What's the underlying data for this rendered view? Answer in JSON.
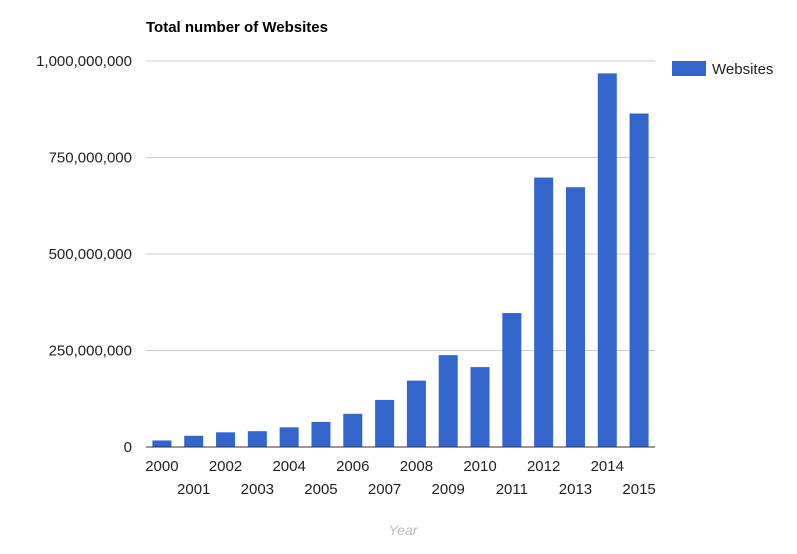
{
  "chart_data": {
    "type": "bar",
    "title": "Total number of Websites",
    "xlabel": "Year",
    "ylabel": "",
    "ylim": [
      0,
      1000000000
    ],
    "yticks": [
      0,
      250000000,
      500000000,
      750000000,
      1000000000
    ],
    "ytick_labels": [
      "0",
      "250,000,000",
      "500,000,000",
      "750,000,000",
      "1,000,000,000"
    ],
    "grid": true,
    "legend_position": "right",
    "categories": [
      "2000",
      "2001",
      "2002",
      "2003",
      "2004",
      "2005",
      "2006",
      "2007",
      "2008",
      "2009",
      "2010",
      "2011",
      "2012",
      "2013",
      "2014",
      "2015"
    ],
    "series": [
      {
        "name": "Websites",
        "color": "#3366cc",
        "values": [
          17000000,
          29000000,
          38000000,
          41000000,
          51000000,
          65000000,
          86000000,
          122000000,
          172000000,
          238000000,
          207000000,
          347000000,
          698000000,
          673000000,
          968000000,
          864000000
        ]
      }
    ]
  },
  "colors": {
    "bar": "#3366cc",
    "grid": "#cccccc",
    "axis": "#333333",
    "text": "#222222",
    "xlabel": "#bbbbbb"
  }
}
